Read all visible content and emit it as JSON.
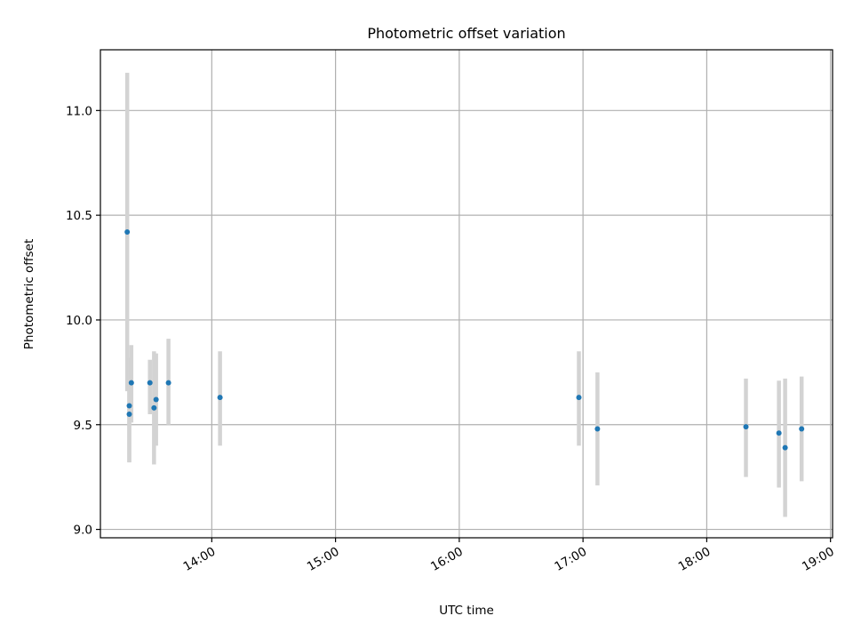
{
  "chart_data": {
    "type": "scatter",
    "title": "Photometric offset variation",
    "xlabel": "UTC time",
    "ylabel": "Photometric offset",
    "x_unit": "UTC time (HH:MM)",
    "xlim": [
      "13:06",
      "19:01"
    ],
    "ylim": [
      8.96,
      11.29
    ],
    "grid": true,
    "x_ticks": [
      "14:00",
      "15:00",
      "16:00",
      "17:00",
      "18:00",
      "19:00"
    ],
    "y_ticks": [
      "9.0",
      "9.5",
      "10.0",
      "10.5",
      "11.0"
    ],
    "series": [
      {
        "marker_color": "#1f77b4",
        "errorbar_color": "#d3d3d3",
        "points": [
          {
            "x": "13:19",
            "y": 10.42,
            "lo": 9.66,
            "hi": 11.18
          },
          {
            "x": "13:20",
            "y": 9.59,
            "lo": 9.32,
            "hi": 9.82
          },
          {
            "x": "13:20",
            "y": 9.55,
            "lo": 9.32,
            "hi": 9.79
          },
          {
            "x": "13:21",
            "y": 9.7,
            "lo": 9.51,
            "hi": 9.88
          },
          {
            "x": "13:30",
            "y": 9.7,
            "lo": 9.55,
            "hi": 9.81
          },
          {
            "x": "13:32",
            "y": 9.58,
            "lo": 9.31,
            "hi": 9.85
          },
          {
            "x": "13:33",
            "y": 9.62,
            "lo": 9.4,
            "hi": 9.84
          },
          {
            "x": "13:39",
            "y": 9.7,
            "lo": 9.5,
            "hi": 9.91
          },
          {
            "x": "14:04",
            "y": 9.63,
            "lo": 9.4,
            "hi": 9.85
          },
          {
            "x": "16:58",
            "y": 9.63,
            "lo": 9.4,
            "hi": 9.85
          },
          {
            "x": "17:07",
            "y": 9.48,
            "lo": 9.21,
            "hi": 9.75
          },
          {
            "x": "18:19",
            "y": 9.49,
            "lo": 9.25,
            "hi": 9.72
          },
          {
            "x": "18:35",
            "y": 9.46,
            "lo": 9.2,
            "hi": 9.71
          },
          {
            "x": "18:38",
            "y": 9.39,
            "lo": 9.06,
            "hi": 9.72
          },
          {
            "x": "18:46",
            "y": 9.48,
            "lo": 9.23,
            "hi": 9.73
          }
        ]
      }
    ]
  }
}
